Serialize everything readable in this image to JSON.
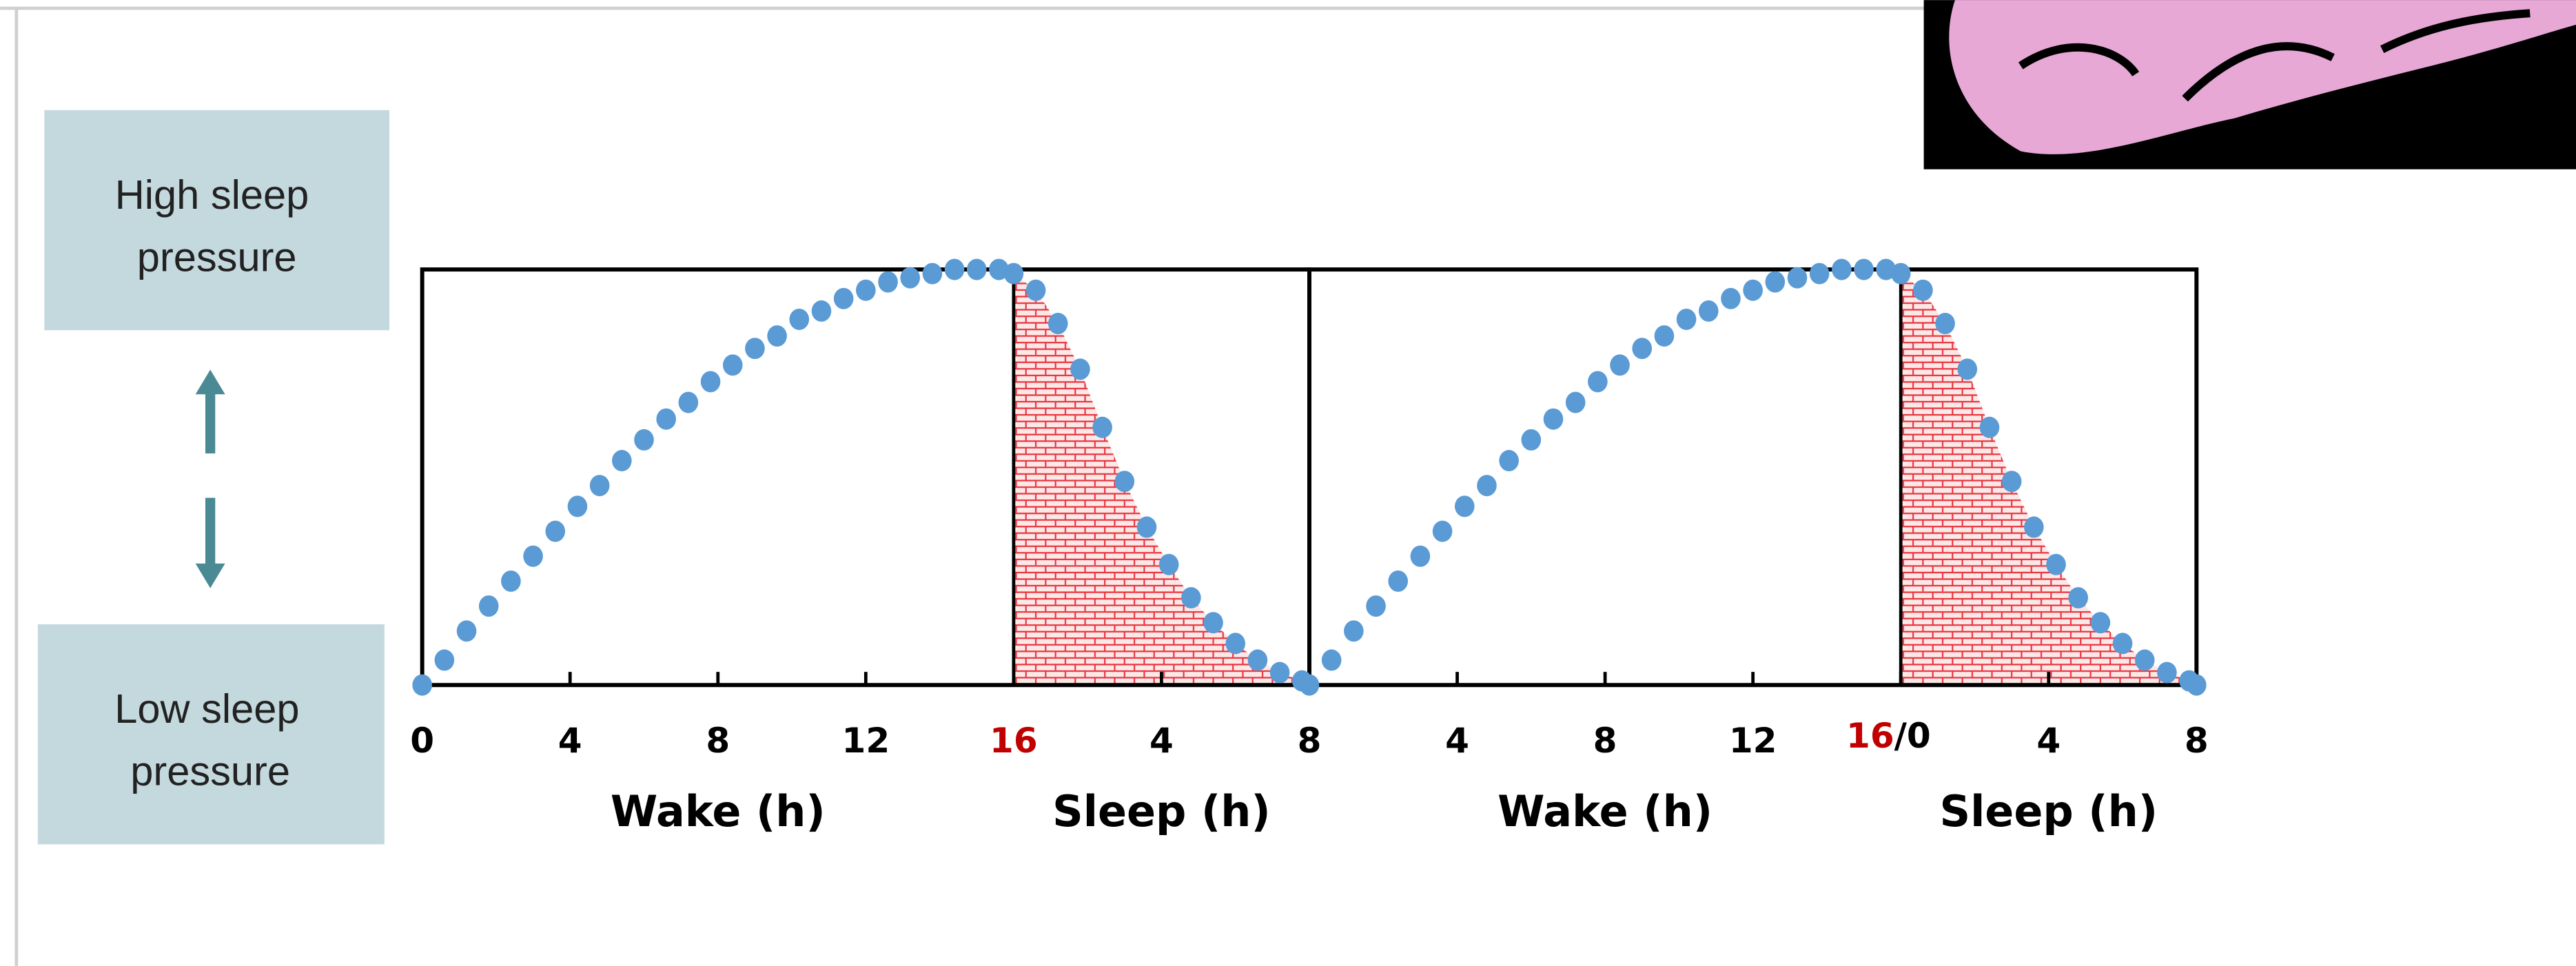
{
  "chart_data": {
    "type": "scatter",
    "pressure_high": [
      "High sleep",
      "pressure"
    ],
    "pressure_low": [
      "Low sleep",
      "pressure"
    ],
    "wake_label": "Wake (h)",
    "sleep_label": "Sleep (h)",
    "sleep_periods": [
      [
        16,
        24
      ],
      [
        40,
        48
      ]
    ],
    "color": "#5b9bd5",
    "shade_color": "#e8323c",
    "x": [
      0,
      0.6,
      1.2,
      1.8,
      2.4,
      3,
      3.6,
      4.2,
      4.8,
      5.4,
      6,
      6.6,
      7.2,
      7.8,
      8.4,
      9,
      9.6,
      10.2,
      10.8,
      11.4,
      12,
      12.6,
      13.2,
      13.8,
      14.4,
      15,
      15.6,
      16,
      16.6,
      17.2,
      17.8,
      18.4,
      19,
      19.6,
      20.2,
      20.8,
      21.4,
      22,
      22.6,
      23.2,
      23.8,
      24,
      24.6,
      25.2,
      25.8,
      26.4,
      27,
      27.6,
      28.2,
      28.8,
      29.4,
      30,
      30.6,
      31.2,
      31.8,
      32.4,
      33,
      33.6,
      34.2,
      34.8,
      35.4,
      36,
      36.6,
      37.2,
      37.8,
      38.4,
      39,
      39.6,
      40,
      40.6,
      41.2,
      41.8,
      42.4,
      43,
      43.6,
      44.2,
      44.8,
      45.4,
      46,
      46.6,
      47.2,
      47.8,
      48
    ],
    "values": [
      0,
      0.06,
      0.13,
      0.19,
      0.25,
      0.31,
      0.37,
      0.43,
      0.48,
      0.54,
      0.59,
      0.64,
      0.68,
      0.73,
      0.77,
      0.81,
      0.84,
      0.88,
      0.9,
      0.93,
      0.95,
      0.97,
      0.98,
      0.99,
      1,
      1,
      1,
      0.99,
      0.95,
      0.87,
      0.76,
      0.62,
      0.49,
      0.38,
      0.29,
      0.21,
      0.15,
      0.1,
      0.06,
      0.03,
      0.01,
      0,
      0.06,
      0.13,
      0.19,
      0.25,
      0.31,
      0.37,
      0.43,
      0.48,
      0.54,
      0.59,
      0.64,
      0.68,
      0.73,
      0.77,
      0.81,
      0.84,
      0.88,
      0.9,
      0.93,
      0.95,
      0.97,
      0.98,
      0.99,
      1,
      1,
      1,
      0.99,
      0.95,
      0.87,
      0.76,
      0.62,
      0.49,
      0.38,
      0.29,
      0.21,
      0.15,
      0.1,
      0.06,
      0.03,
      0.01,
      0
    ],
    "xlim": [
      0,
      48
    ],
    "ylim": [
      0,
      1
    ],
    "xticks": [
      0,
      4,
      8,
      12,
      {
        "value": 16,
        "label": "16",
        "color": "#c00000"
      },
      {
        "value": 20,
        "label": "4"
      },
      {
        "value": 24,
        "label": "8"
      },
      {
        "value": 28,
        "label": "4"
      },
      {
        "value": 32,
        "label": "8"
      },
      {
        "value": 36,
        "label": "12"
      },
      {
        "value": 40,
        "label": "16",
        "color": "#c00000",
        "suffix": "/0"
      },
      {
        "value": 44,
        "label": "4"
      },
      {
        "value": 48,
        "label": "8"
      }
    ]
  }
}
